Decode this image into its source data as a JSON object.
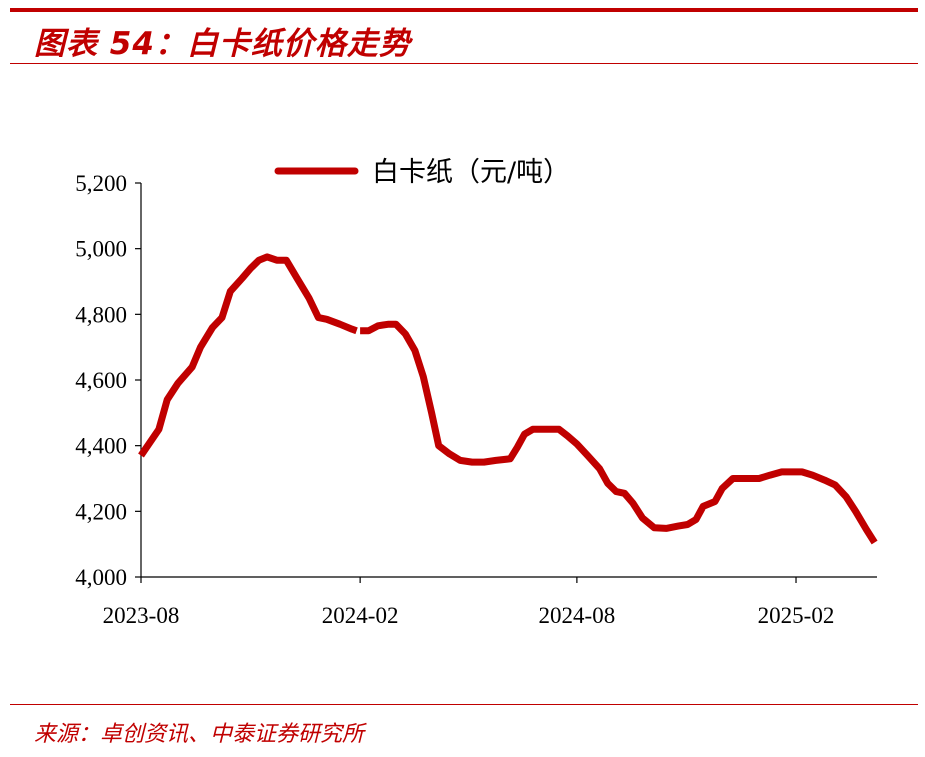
{
  "header": {
    "title": "图表 54：白卡纸价格走势"
  },
  "footer": {
    "source": "来源：卓创资讯、中泰证券研究所"
  },
  "colors": {
    "accent": "#c00000",
    "line": "#c00000"
  },
  "chart_data": {
    "type": "line",
    "title": "",
    "xlabel": "",
    "ylabel": "",
    "ylim": [
      4000,
      5200
    ],
    "yticks": [
      4000,
      4200,
      4400,
      4600,
      4800,
      5000,
      5200
    ],
    "ytick_labels": [
      "4,000",
      "4,200",
      "4,400",
      "4,600",
      "4,800",
      "5,000",
      "5,200"
    ],
    "xlim": [
      "2023-08-01",
      "2025-04-10"
    ],
    "xticks": [
      "2023-08-01",
      "2024-02-01",
      "2024-08-01",
      "2025-02-01"
    ],
    "xtick_labels": [
      "2023-08",
      "2024-02",
      "2024-08",
      "2025-02"
    ],
    "grid": false,
    "legend": "top",
    "series": [
      {
        "name": "白卡纸（元/吨）",
        "segments": [
          [
            [
              "2023-08-01",
              4370
            ],
            [
              "2023-08-16",
              4450
            ],
            [
              "2023-08-23",
              4540
            ],
            [
              "2023-09-01",
              4590
            ],
            [
              "2023-09-13",
              4640
            ],
            [
              "2023-09-20",
              4700
            ],
            [
              "2023-09-30",
              4760
            ],
            [
              "2023-10-08",
              4790
            ],
            [
              "2023-10-15",
              4870
            ],
            [
              "2023-10-25",
              4910
            ],
            [
              "2023-11-01",
              4940
            ],
            [
              "2023-11-08",
              4965
            ],
            [
              "2023-11-15",
              4975
            ],
            [
              "2023-11-23",
              4965
            ],
            [
              "2023-12-01",
              4965
            ],
            [
              "2023-12-10",
              4910
            ],
            [
              "2023-12-20",
              4850
            ],
            [
              "2023-12-28",
              4790
            ],
            [
              "2024-01-04",
              4785
            ],
            [
              "2024-01-15",
              4770
            ],
            [
              "2024-01-25",
              4755
            ],
            [
              "2024-01-29",
              4750
            ]
          ],
          [
            [
              "2024-02-01",
              4750
            ],
            [
              "2024-02-08",
              4750
            ],
            [
              "2024-02-16",
              4765
            ],
            [
              "2024-02-25",
              4770
            ],
            [
              "2024-03-02",
              4770
            ],
            [
              "2024-03-10",
              4740
            ],
            [
              "2024-03-18",
              4690
            ],
            [
              "2024-03-25",
              4610
            ],
            [
              "2024-04-01",
              4500
            ],
            [
              "2024-04-07",
              4400
            ],
            [
              "2024-04-16",
              4375
            ],
            [
              "2024-04-25",
              4355
            ],
            [
              "2024-05-05",
              4350
            ],
            [
              "2024-05-15",
              4350
            ],
            [
              "2024-05-25",
              4355
            ],
            [
              "2024-06-06",
              4360
            ],
            [
              "2024-06-12",
              4395
            ],
            [
              "2024-06-18",
              4435
            ],
            [
              "2024-06-25",
              4450
            ],
            [
              "2024-07-05",
              4450
            ],
            [
              "2024-07-17",
              4450
            ],
            [
              "2024-07-24",
              4430
            ],
            [
              "2024-08-01",
              4405
            ],
            [
              "2024-08-10",
              4370
            ],
            [
              "2024-08-20",
              4330
            ],
            [
              "2024-08-27",
              4285
            ],
            [
              "2024-09-03",
              4260
            ],
            [
              "2024-09-10",
              4255
            ],
            [
              "2024-09-17",
              4225
            ],
            [
              "2024-09-25",
              4180
            ],
            [
              "2024-10-05",
              4150
            ],
            [
              "2024-10-15",
              4148
            ],
            [
              "2024-10-25",
              4155
            ],
            [
              "2024-11-02",
              4160
            ],
            [
              "2024-11-09",
              4175
            ],
            [
              "2024-11-15",
              4215
            ],
            [
              "2024-11-25",
              4230
            ],
            [
              "2024-12-01",
              4270
            ],
            [
              "2024-12-10",
              4300
            ],
            [
              "2024-12-20",
              4300
            ],
            [
              "2025-01-01",
              4300
            ],
            [
              "2025-01-10",
              4310
            ],
            [
              "2025-01-20",
              4320
            ],
            [
              "2025-01-28",
              4320
            ],
            [
              "2025-02-06",
              4320
            ],
            [
              "2025-02-15",
              4310
            ],
            [
              "2025-02-25",
              4295
            ],
            [
              "2025-03-06",
              4280
            ],
            [
              "2025-03-15",
              4245
            ],
            [
              "2025-03-23",
              4200
            ],
            [
              "2025-04-01",
              4145
            ],
            [
              "2025-04-08",
              4105
            ]
          ]
        ]
      }
    ]
  }
}
